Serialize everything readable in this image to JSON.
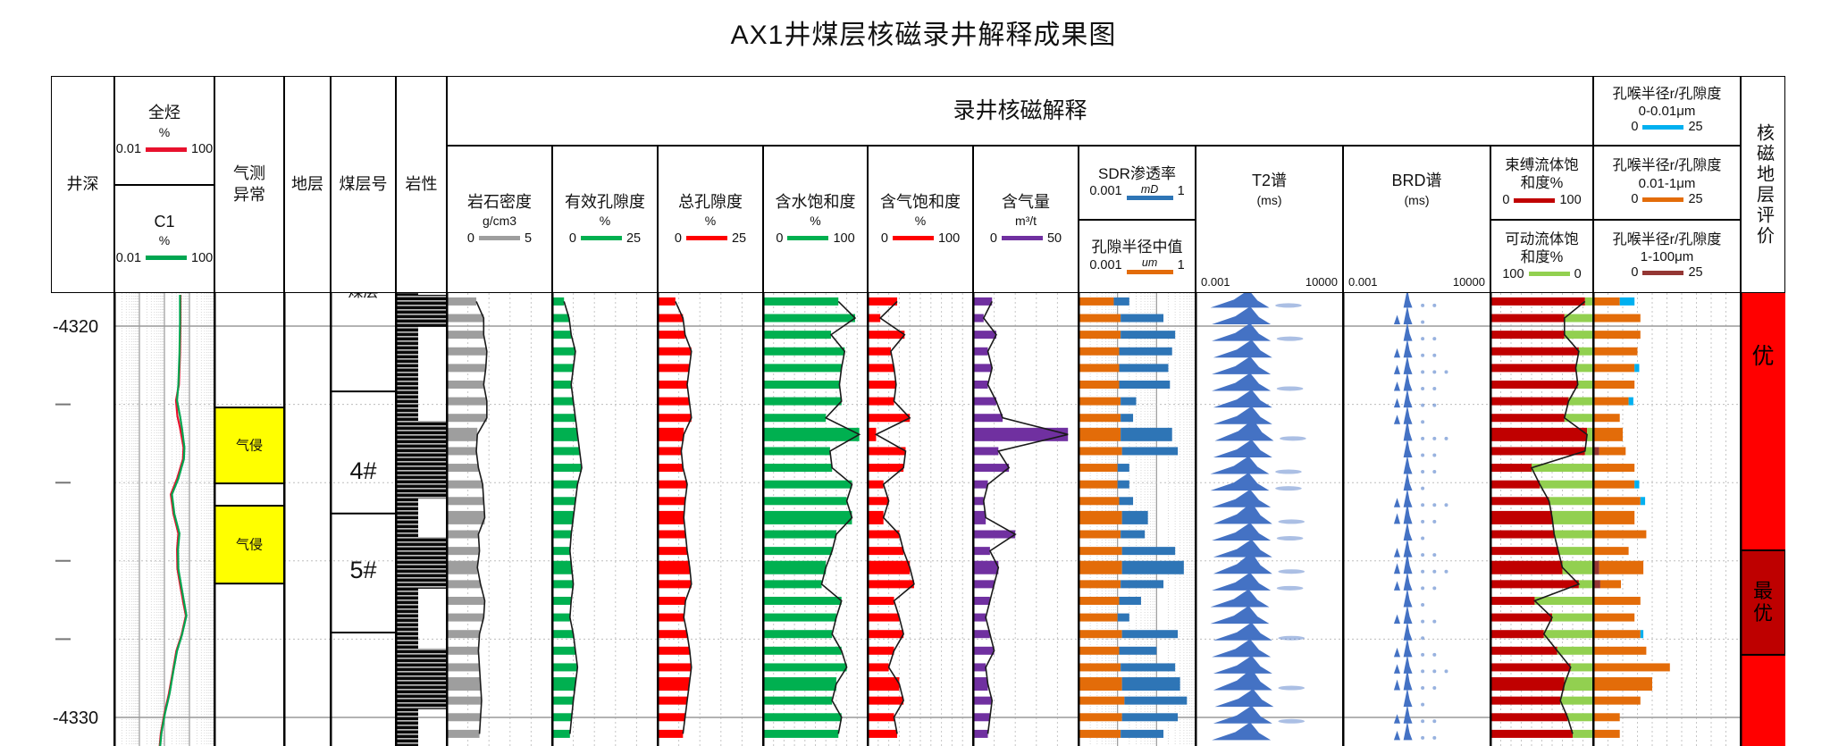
{
  "title": "AX1井煤层核磁录井解释成果图",
  "header": {
    "banner": "录井核磁解释",
    "depth": "井深",
    "gas_anomaly_line1": "气测",
    "gas_anomaly_line2": "异常",
    "stratum": "地层",
    "seam_no": "煤层号",
    "lithology": "岩性",
    "eval": "核磁地层评价",
    "total_hc": {
      "name": "全烃",
      "unit": "%",
      "min": "0.01",
      "max": "100",
      "color": "#e8112d"
    },
    "c1": {
      "name": "C1",
      "unit": "%",
      "min": "0.01",
      "max": "100",
      "color": "#00a651"
    },
    "tracks": [
      {
        "name": "岩石密度",
        "unit": "g/cm3",
        "min": "0",
        "max": "5",
        "color": "#9e9e9e"
      },
      {
        "name": "有效孔隙度",
        "unit": "%",
        "min": "0",
        "max": "25",
        "color": "#00b050"
      },
      {
        "name": "总孔隙度",
        "unit": "%",
        "min": "0",
        "max": "25",
        "color": "#ff0000"
      },
      {
        "name": "含水饱和度",
        "unit": "%",
        "min": "0",
        "max": "100",
        "color": "#00b050"
      },
      {
        "name": "含气饱和度",
        "unit": "%",
        "min": "0",
        "max": "100",
        "color": "#ff0000"
      },
      {
        "name": "含气量",
        "unit": "m³/t",
        "min": "0",
        "max": "50",
        "color": "#7030a0"
      }
    ],
    "sdr": {
      "name": "SDR渗透率",
      "unit": "mD",
      "min": "0.001",
      "max": "1",
      "color": "#2e75b6"
    },
    "median_radius": {
      "name": "孔隙半径中值",
      "unit": "um",
      "min": "0.001",
      "max": "1",
      "color": "#e36c09"
    },
    "t2": {
      "name": "T2谱",
      "unit": "(ms)",
      "min": "0.001",
      "max": "10000"
    },
    "brd": {
      "name": "BRD谱",
      "unit": "(ms)",
      "min": "0.001",
      "max": "10000"
    },
    "bound": {
      "name1": "束缚流体饱",
      "name2": "和度%",
      "min": "0",
      "max": "100",
      "color": "#c00000"
    },
    "movable": {
      "name1": "可动流体饱",
      "name2": "和度%",
      "min": "100",
      "max": "0",
      "color": "#92d050"
    },
    "pore_throat": [
      {
        "name": "孔喉半径r/孔隙度",
        "range": "0-0.01μm",
        "min": "0",
        "max": "25",
        "color": "#00b0f0"
      },
      {
        "name": "孔喉半径r/孔隙度",
        "range": "0.01-1μm",
        "min": "0",
        "max": "25",
        "color": "#e36c09"
      },
      {
        "name": "孔喉半径r/孔隙度",
        "range": "1-100μm",
        "min": "0",
        "max": "25",
        "color": "#943634"
      }
    ]
  },
  "annotations": {
    "gas_invasion": "气侵",
    "clipped_seam_label": "煤层",
    "eval_good": "优",
    "eval_best": "最优"
  },
  "depth_axis": {
    "labels": [
      {
        "text": "-4320",
        "depth": 4320
      },
      {
        "text": "-4330",
        "depth": 4330
      }
    ],
    "tick_depths": [
      4322,
      4324,
      4326,
      4328
    ]
  },
  "chart_data": {
    "type": "well-log",
    "depth_unit": "m",
    "samples": {
      "depth_start": 4319.37,
      "depth_step": 0.425,
      "count": 27,
      "thick_rows": [
        8,
        13,
        16,
        23
      ],
      "density_g_cm3": [
        1.4,
        1.75,
        1.75,
        1.9,
        1.85,
        1.75,
        1.9,
        1.9,
        1.45,
        1.4,
        1.5,
        1.7,
        1.75,
        1.8,
        1.5,
        1.55,
        1.45,
        1.6,
        1.8,
        1.75,
        1.55,
        1.5,
        1.55,
        1.6,
        1.65,
        1.6,
        1.55
      ],
      "effective_porosity_pct": [
        2.8,
        4,
        4.5,
        5.5,
        5,
        4.5,
        5,
        5.5,
        6,
        6.5,
        7,
        6,
        5.5,
        5,
        4.5,
        4.2,
        4.6,
        5,
        4.5,
        4.2,
        5,
        5.5,
        6,
        5.5,
        5,
        4.6,
        4.2
      ],
      "total_porosity_pct": [
        4.2,
        6,
        6.5,
        8,
        7.5,
        7,
        7.5,
        8,
        6.2,
        5.6,
        6,
        7,
        6.5,
        6.2,
        6.6,
        7,
        7.6,
        8,
        6.6,
        6.2,
        7,
        7.6,
        8,
        7.5,
        7,
        6.5,
        6
      ],
      "water_saturation_pct": [
        72,
        88,
        65,
        78,
        75,
        73,
        75,
        60,
        92,
        64,
        66,
        85,
        80,
        85,
        70,
        66,
        60,
        56,
        75,
        70,
        66,
        75,
        80,
        70,
        66,
        75,
        72
      ],
      "gas_saturation_pct": [
        28,
        12,
        35,
        22,
        25,
        27,
        25,
        40,
        8,
        36,
        34,
        15,
        20,
        15,
        30,
        34,
        40,
        44,
        25,
        30,
        34,
        25,
        20,
        30,
        34,
        25,
        28
      ],
      "gas_content_m3_t": [
        9,
        5,
        11,
        7,
        9,
        7,
        11,
        14,
        45,
        12,
        17,
        7,
        5,
        6,
        20,
        8,
        12,
        10,
        8,
        6,
        8,
        10,
        6,
        7,
        9,
        8,
        7
      ],
      "sdr_permeability_mD": [
        0.02,
        0.15,
        0.3,
        0.25,
        0.2,
        0.22,
        0.03,
        0.025,
        0.25,
        0.35,
        0.02,
        0.02,
        0.025,
        0.06,
        0.05,
        0.3,
        0.5,
        0.15,
        0.04,
        0.02,
        0.35,
        0.1,
        0.3,
        0.4,
        0.6,
        0.35,
        0.15
      ],
      "pore_radius_median_um": [
        0.008,
        0.012,
        0.012,
        0.011,
        0.011,
        0.011,
        0.012,
        0.012,
        0.012,
        0.013,
        0.01,
        0.01,
        0.011,
        0.013,
        0.012,
        0.013,
        0.013,
        0.012,
        0.011,
        0.01,
        0.013,
        0.011,
        0.012,
        0.013,
        0.015,
        0.013,
        0.012
      ],
      "bound_fluid_pct": [
        92,
        72,
        72,
        86,
        83,
        85,
        76,
        72,
        94,
        92,
        40,
        48,
        57,
        60,
        62,
        66,
        70,
        86,
        43,
        60,
        52,
        65,
        78,
        72,
        68,
        75,
        80
      ],
      "pore_throat_0_001um": [
        2.5,
        0,
        0,
        0,
        0.8,
        0,
        0.8,
        0,
        0,
        0,
        0,
        0.8,
        0.8,
        0,
        0,
        0,
        0,
        0,
        0,
        0,
        0.5,
        0,
        0,
        0,
        0,
        0,
        0
      ],
      "pore_throat_001_1um": [
        4.5,
        8,
        8,
        7.5,
        7,
        7,
        6,
        4.5,
        5,
        4.5,
        7,
        7,
        8,
        7,
        9,
        6,
        7.5,
        3.5,
        8,
        7,
        8,
        9,
        13,
        10,
        8,
        4.5,
        4.5
      ],
      "pore_throat_1_100um": [
        0,
        0,
        0,
        0,
        0,
        0,
        0,
        0,
        0,
        1,
        0,
        0,
        0,
        0,
        0,
        0,
        1,
        1.2,
        0,
        0,
        0,
        0,
        0,
        0,
        0,
        0,
        0
      ],
      "t2_peak_center_frac": [
        0.36,
        0.37,
        0.37,
        0.38,
        0.37,
        0.37,
        0.38,
        0.38,
        0.39,
        0.38,
        0.36,
        0.36,
        0.37,
        0.38,
        0.37,
        0.38,
        0.38,
        0.37,
        0.36,
        0.36,
        0.38,
        0.37,
        0.38,
        0.38,
        0.39,
        0.38,
        0.37
      ],
      "t2_tail": [
        1,
        0,
        1,
        0,
        0,
        1,
        0,
        0,
        1,
        0,
        1,
        1,
        0,
        1,
        1,
        0,
        1,
        1,
        0,
        0,
        1,
        0,
        0,
        1,
        0,
        1,
        0
      ],
      "brd_pre_peak": [
        0,
        1,
        0,
        1,
        1,
        1,
        1,
        1,
        0,
        0,
        0,
        0,
        1,
        1,
        0,
        1,
        1,
        1,
        0,
        1,
        0,
        1,
        1,
        1,
        0,
        1,
        1
      ],
      "brd_dot_count": [
        2,
        1,
        2,
        2,
        3,
        2,
        2,
        1,
        3,
        2,
        2,
        1,
        3,
        2,
        1,
        2,
        3,
        2,
        1,
        2,
        1,
        2,
        3,
        2,
        1,
        2,
        2
      ]
    },
    "gas_curves": {
      "scale": "log",
      "min": 0.01,
      "max": 100,
      "points": [
        [
          4319.2,
          4.4,
          4.2
        ],
        [
          4319.9,
          4.4,
          4.2
        ],
        [
          4320.7,
          4.2,
          4.0
        ],
        [
          4321.5,
          3.8,
          3.6
        ],
        [
          4321.9,
          2.9,
          3.2
        ],
        [
          4322.3,
          3.3,
          4.2
        ],
        [
          4322.6,
          4.2,
          5.0
        ],
        [
          4323.1,
          5.8,
          6.3
        ],
        [
          4323.4,
          5.5,
          6.0
        ],
        [
          4323.9,
          3.2,
          3.6
        ],
        [
          4324.3,
          1.8,
          2.0
        ],
        [
          4324.8,
          2.3,
          2.5
        ],
        [
          4325.3,
          3.6,
          4.0
        ],
        [
          4325.7,
          3.2,
          3.5
        ],
        [
          4326.2,
          3.3,
          3.6
        ],
        [
          4326.6,
          4.2,
          4.6
        ],
        [
          4327.1,
          5.8,
          6.3
        ],
        [
          4327.4,
          7.2,
          7.6
        ],
        [
          4327.9,
          4.8,
          5.0
        ],
        [
          4328.3,
          3.0,
          3.2
        ],
        [
          4328.8,
          2.2,
          2.3
        ],
        [
          4329.4,
          1.5,
          1.6
        ],
        [
          4329.9,
          1.0,
          1.05
        ],
        [
          4330.4,
          0.72,
          0.76
        ],
        [
          4330.8,
          0.63,
          0.66
        ]
      ]
    },
    "gas_invasion_blocks": [
      [
        4322.08,
        4324.02
      ],
      [
        4324.59,
        4326.58
      ]
    ],
    "lithology": {
      "strip_range": [
        4319.16,
        4330.8
      ],
      "wide_blocks": [
        [
          4319.2,
          4320.02
        ],
        [
          4322.42,
          4324.41
        ],
        [
          4325.39,
          4326.71
        ],
        [
          4328.24,
          4329.79
        ]
      ]
    },
    "seam_cells": {
      "divider_depths": [
        4321.67,
        4324.79,
        4327.83
      ],
      "labels": [
        {
          "text": "4#",
          "depth": 4323.7
        },
        {
          "text": "5#",
          "depth": 4326.23
        }
      ]
    },
    "evaluation": {
      "base_color": "#ff0000",
      "best_color": "#be0000",
      "best_block": [
        4325.73,
        4328.4
      ],
      "good_label_depth": 4320.75,
      "best_label_depth": 4327.05
    }
  }
}
